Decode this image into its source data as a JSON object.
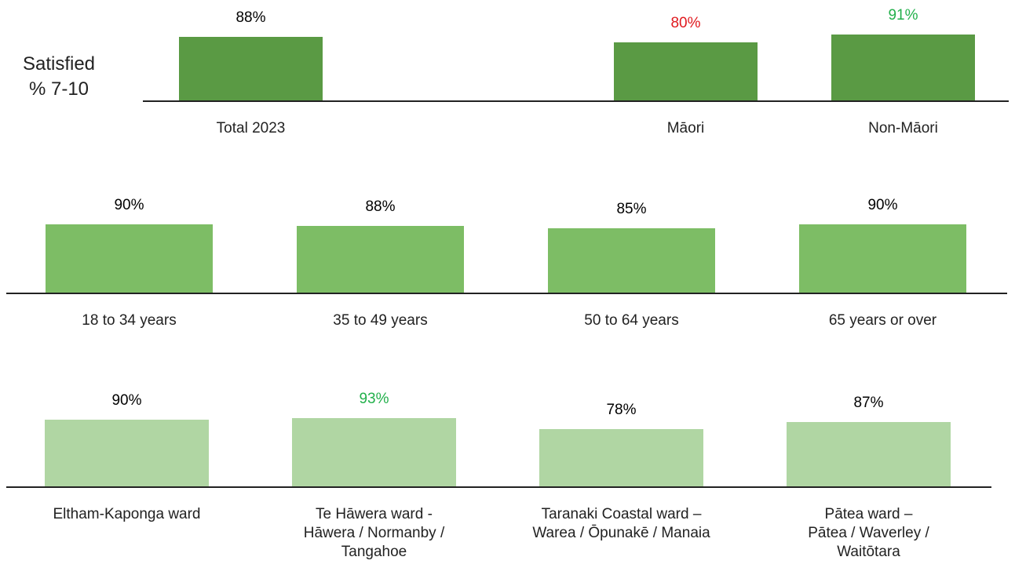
{
  "chart_data": [
    {
      "type": "bar",
      "y_label": "Satisfied\n% 7-10",
      "color": "#5a9a44",
      "categories": [
        "Total 2023",
        null,
        "Māori",
        "Non-Māori"
      ],
      "values": [
        88,
        null,
        80,
        91
      ],
      "value_labels": [
        "88%",
        null,
        "80%",
        "91%"
      ],
      "value_label_colors": [
        "#000000",
        null,
        "#e0191e",
        "#22b04b"
      ]
    },
    {
      "type": "bar",
      "color": "#7dbd65",
      "categories": [
        "18 to 34 years",
        "35 to 49 years",
        "50 to 64 years",
        "65 years or over"
      ],
      "values": [
        90,
        88,
        85,
        90
      ],
      "value_labels": [
        "90%",
        "88%",
        "85%",
        "90%"
      ],
      "value_label_colors": [
        "#000000",
        "#000000",
        "#000000",
        "#000000"
      ]
    },
    {
      "type": "bar",
      "color": "#b0d6a3",
      "categories": [
        "Eltham-Kaponga ward",
        "Te Hāwera ward -\nHāwera / Normanby /\nTangahoe",
        "Taranaki Coastal ward –\nWarea /  Ōpunakē / Manaia",
        "Pātea ward –\nPātea / Waverley /\nWaitōtara"
      ],
      "values": [
        90,
        93,
        78,
        87
      ],
      "value_labels": [
        "90%",
        "93%",
        "78%",
        "87%"
      ],
      "value_label_colors": [
        "#000000",
        "#22b04b",
        "#000000",
        "#000000"
      ]
    }
  ]
}
